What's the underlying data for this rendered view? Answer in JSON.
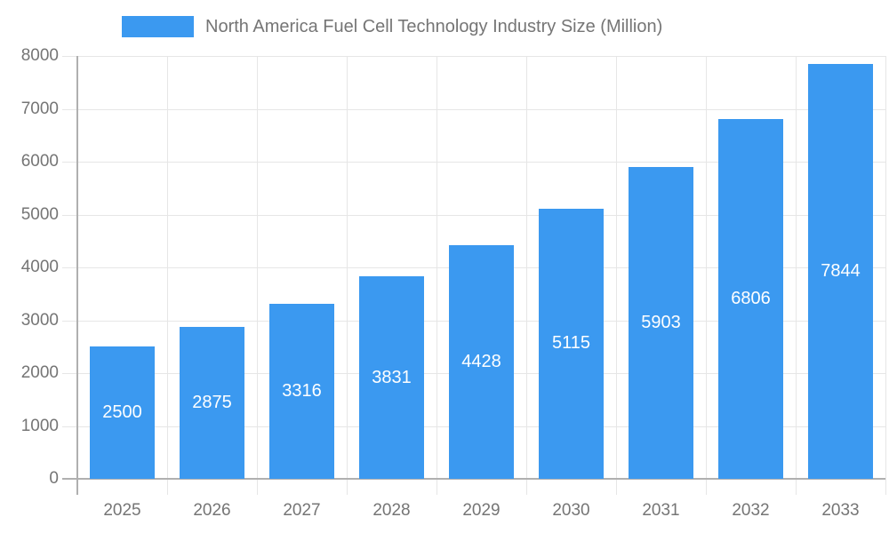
{
  "legend": {
    "series_label": "North America Fuel Cell Technology Industry Size (Million)"
  },
  "chart_data": {
    "type": "bar",
    "title": "North America Fuel Cell Technology Industry Size (Million)",
    "categories": [
      "2025",
      "2026",
      "2027",
      "2028",
      "2029",
      "2030",
      "2031",
      "2032",
      "2033"
    ],
    "values": [
      2500,
      2875,
      3316,
      3831,
      4428,
      5115,
      5903,
      6806,
      7844
    ],
    "xlabel": "",
    "ylabel": "",
    "ylim": [
      0,
      8000
    ],
    "yticks": [
      0,
      1000,
      2000,
      3000,
      4000,
      5000,
      6000,
      7000,
      8000
    ],
    "grid": true,
    "legend_position": "top",
    "colors": {
      "bar": "#3B99F0",
      "value_label": "#ffffff",
      "axis_text": "#757575",
      "legend_text": "#757575",
      "gridline": "#e6e6e6",
      "axis_line": "#b0b0b0"
    }
  }
}
